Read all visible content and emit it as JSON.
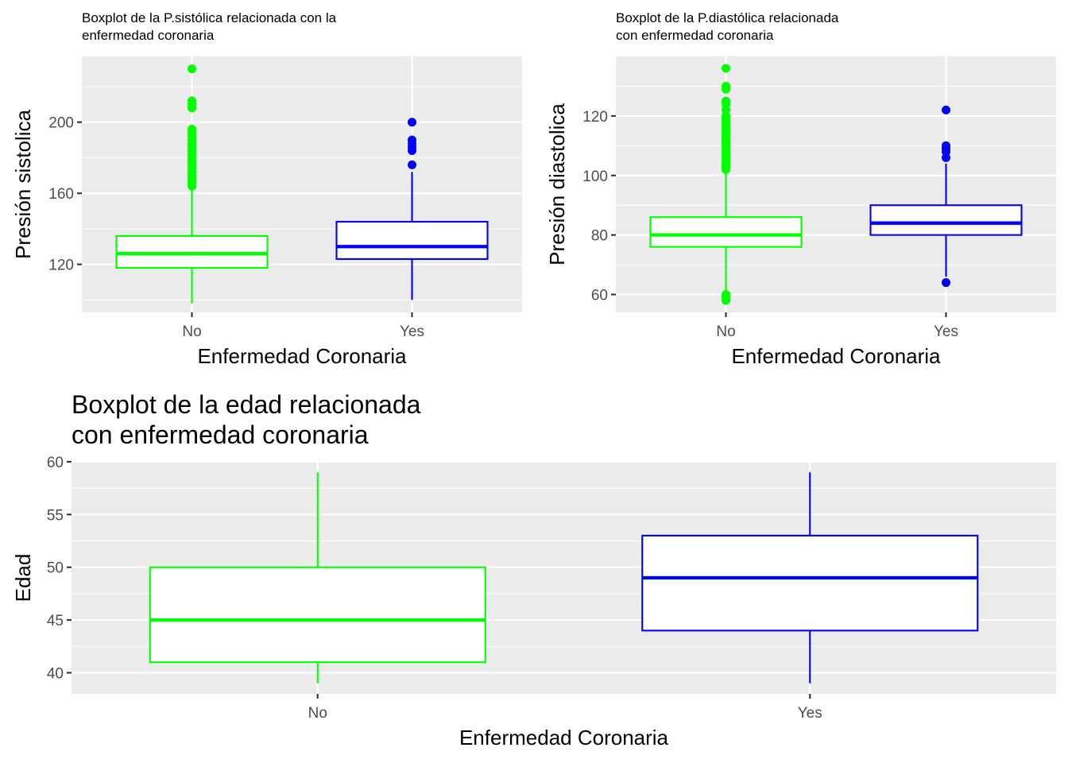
{
  "chart_data": [
    {
      "type": "boxplot",
      "title_lines": [
        "Boxplot de la P.sistólica relacionada con la",
        "enfermedad coronaria"
      ],
      "xlabel": "Enfermedad Coronaria",
      "ylabel": "Presión sistolica",
      "categories": [
        "No",
        "Yes"
      ],
      "ylim": [
        93,
        237
      ],
      "yticks": [
        120,
        160,
        200
      ],
      "colors": [
        "#00FF00",
        "#0000FF"
      ],
      "boxes": [
        {
          "category": "No",
          "whisker_low": 98,
          "q1": 118,
          "median": 126,
          "q3": 136,
          "whisker_high": 163,
          "outliers": [
            164,
            166,
            168,
            170,
            172,
            174,
            176,
            178,
            180,
            182,
            184,
            186,
            188,
            190,
            192,
            194,
            196,
            208,
            210,
            212,
            230
          ]
        },
        {
          "category": "Yes",
          "whisker_low": 100,
          "q1": 123,
          "median": 130,
          "q3": 144,
          "whisker_high": 172,
          "outliers": [
            176,
            184,
            186,
            188,
            190,
            200
          ]
        }
      ]
    },
    {
      "type": "boxplot",
      "title_lines": [
        "Boxplot de la P.diastólica relacionada",
        "con enfermedad coronaria"
      ],
      "xlabel": "Enfermedad Coronaria",
      "ylabel": "Presión diastolica",
      "categories": [
        "No",
        "Yes"
      ],
      "ylim": [
        54,
        140
      ],
      "yticks": [
        60,
        80,
        100,
        120
      ],
      "colors": [
        "#00FF00",
        "#0000FF"
      ],
      "boxes": [
        {
          "category": "No",
          "whisker_low": 61,
          "q1": 76,
          "median": 80,
          "q3": 86,
          "whisker_high": 101,
          "outliers": [
            58,
            59,
            60,
            102,
            103,
            104,
            105,
            106,
            107,
            108,
            109,
            110,
            111,
            112,
            113,
            114,
            115,
            116,
            117,
            118,
            119,
            120,
            122,
            124,
            125,
            129,
            130,
            136
          ]
        },
        {
          "category": "Yes",
          "whisker_low": 66,
          "q1": 80,
          "median": 84,
          "q3": 90,
          "whisker_high": 104,
          "outliers": [
            64,
            106,
            108,
            109,
            110,
            122
          ]
        }
      ]
    },
    {
      "type": "boxplot",
      "title_lines": [
        "Boxplot de la edad relacionada",
        "con enfermedad coronaria"
      ],
      "xlabel": "Enfermedad Coronaria",
      "ylabel": "Edad",
      "categories": [
        "No",
        "Yes"
      ],
      "ylim": [
        38,
        60
      ],
      "yticks": [
        40,
        45,
        50,
        55,
        60
      ],
      "colors": [
        "#00FF00",
        "#0000FF"
      ],
      "boxes": [
        {
          "category": "No",
          "whisker_low": 39,
          "q1": 41,
          "median": 45,
          "q3": 50,
          "whisker_high": 59,
          "outliers": []
        },
        {
          "category": "Yes",
          "whisker_low": 39,
          "q1": 44,
          "median": 49,
          "q3": 53,
          "whisker_high": 59,
          "outliers": []
        }
      ]
    }
  ]
}
